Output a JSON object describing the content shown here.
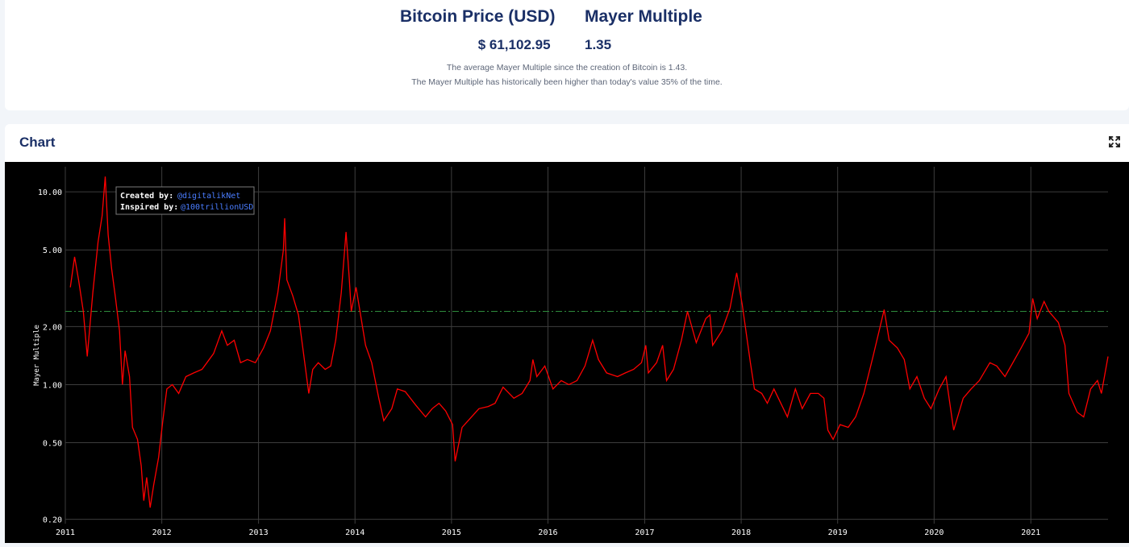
{
  "header": {
    "price_label": "Bitcoin Price (USD)",
    "price_value": "$ 61,102.95",
    "mayer_label": "Mayer Multiple",
    "mayer_value": "1.35",
    "note_1": "The average Mayer Multiple since the creation of Bitcoin is 1.43.",
    "note_2": "The Mayer Multiple has historically been higher than today's value 35% of the time."
  },
  "chart_panel": {
    "title": "Chart",
    "expand_icon": "expand-arrows-icon"
  },
  "credits": {
    "created_label": "Created by:",
    "created_handle": "@digitalikNet",
    "inspired_label": "Inspired by:",
    "inspired_handle": "@100trillionUSD"
  },
  "colors": {
    "series": "#ff0000",
    "threshold": "#2e8b3c",
    "plot_background": "#000000",
    "link": "#4a7dff",
    "heading": "#1a2f66"
  },
  "chart_data": {
    "type": "line",
    "scale_y": "log",
    "ylabel": "Mayer Multiple",
    "xlabel": "",
    "ylim": [
      0.19,
      13.5
    ],
    "xlim": [
      "2011-01-01",
      "2021-10-20"
    ],
    "grid": true,
    "y_ticks": [
      {
        "value": 10,
        "label": "10.00"
      },
      {
        "value": 5,
        "label": "5.00"
      },
      {
        "value": 2,
        "label": "2.00"
      },
      {
        "value": 1,
        "label": "1.00"
      },
      {
        "value": 0.5,
        "label": "0.50"
      },
      {
        "value": 0.2,
        "label": "0.20"
      }
    ],
    "x_ticks": [
      "2011",
      "2012",
      "2013",
      "2014",
      "2015",
      "2016",
      "2017",
      "2018",
      "2019",
      "2020",
      "2021"
    ],
    "threshold_line": {
      "value": 2.4,
      "style": "dash-dot"
    },
    "series": [
      {
        "points": [
          [
            "2011-01-20",
            3.2
          ],
          [
            "2011-02-05",
            4.6
          ],
          [
            "2011-02-20",
            3.5
          ],
          [
            "2011-03-10",
            2.4
          ],
          [
            "2011-03-25",
            1.4
          ],
          [
            "2011-04-15",
            3.0
          ],
          [
            "2011-05-05",
            5.5
          ],
          [
            "2011-05-20",
            7.5
          ],
          [
            "2011-06-01",
            12.0
          ],
          [
            "2011-06-12",
            6.0
          ],
          [
            "2011-06-25",
            4.0
          ],
          [
            "2011-07-10",
            2.8
          ],
          [
            "2011-07-25",
            1.9
          ],
          [
            "2011-08-05",
            1.0
          ],
          [
            "2011-08-15",
            1.5
          ],
          [
            "2011-09-01",
            1.1
          ],
          [
            "2011-09-12",
            0.6
          ],
          [
            "2011-10-01",
            0.52
          ],
          [
            "2011-10-15",
            0.38
          ],
          [
            "2011-10-25",
            0.25
          ],
          [
            "2011-11-05",
            0.33
          ],
          [
            "2011-11-18",
            0.23
          ],
          [
            "2011-12-01",
            0.3
          ],
          [
            "2011-12-20",
            0.42
          ],
          [
            "2012-01-05",
            0.65
          ],
          [
            "2012-01-20",
            0.95
          ],
          [
            "2012-02-10",
            1.0
          ],
          [
            "2012-03-05",
            0.9
          ],
          [
            "2012-04-01",
            1.1
          ],
          [
            "2012-05-01",
            1.15
          ],
          [
            "2012-06-01",
            1.2
          ],
          [
            "2012-07-15",
            1.45
          ],
          [
            "2012-08-15",
            1.9
          ],
          [
            "2012-09-05",
            1.6
          ],
          [
            "2012-10-01",
            1.7
          ],
          [
            "2012-10-25",
            1.3
          ],
          [
            "2012-11-20",
            1.35
          ],
          [
            "2012-12-20",
            1.3
          ],
          [
            "2013-01-20",
            1.55
          ],
          [
            "2013-02-15",
            1.9
          ],
          [
            "2013-03-15",
            3.0
          ],
          [
            "2013-04-05",
            5.0
          ],
          [
            "2013-04-10",
            7.3
          ],
          [
            "2013-04-18",
            3.5
          ],
          [
            "2013-05-10",
            2.9
          ],
          [
            "2013-06-01",
            2.3
          ],
          [
            "2013-06-25",
            1.3
          ],
          [
            "2013-07-10",
            0.9
          ],
          [
            "2013-07-25",
            1.2
          ],
          [
            "2013-08-15",
            1.3
          ],
          [
            "2013-09-10",
            1.2
          ],
          [
            "2013-10-01",
            1.25
          ],
          [
            "2013-10-20",
            1.7
          ],
          [
            "2013-11-10",
            3.0
          ],
          [
            "2013-11-28",
            6.2
          ],
          [
            "2013-12-10",
            3.6
          ],
          [
            "2013-12-18",
            2.4
          ],
          [
            "2014-01-05",
            3.2
          ],
          [
            "2014-01-20",
            2.4
          ],
          [
            "2014-02-10",
            1.6
          ],
          [
            "2014-03-05",
            1.3
          ],
          [
            "2014-04-01",
            0.85
          ],
          [
            "2014-04-20",
            0.65
          ],
          [
            "2014-05-20",
            0.75
          ],
          [
            "2014-06-10",
            0.95
          ],
          [
            "2014-07-10",
            0.92
          ],
          [
            "2014-08-20",
            0.78
          ],
          [
            "2014-09-25",
            0.68
          ],
          [
            "2014-10-20",
            0.75
          ],
          [
            "2014-11-15",
            0.8
          ],
          [
            "2014-12-10",
            0.73
          ],
          [
            "2015-01-05",
            0.62
          ],
          [
            "2015-01-15",
            0.4
          ],
          [
            "2015-02-10",
            0.6
          ],
          [
            "2015-03-05",
            0.65
          ],
          [
            "2015-04-15",
            0.75
          ],
          [
            "2015-05-20",
            0.77
          ],
          [
            "2015-06-15",
            0.8
          ],
          [
            "2015-07-15",
            0.97
          ],
          [
            "2015-08-25",
            0.85
          ],
          [
            "2015-09-25",
            0.9
          ],
          [
            "2015-10-25",
            1.05
          ],
          [
            "2015-11-05",
            1.35
          ],
          [
            "2015-11-20",
            1.1
          ],
          [
            "2015-12-20",
            1.25
          ],
          [
            "2016-01-20",
            0.95
          ],
          [
            "2016-02-20",
            1.05
          ],
          [
            "2016-03-20",
            1.0
          ],
          [
            "2016-04-20",
            1.05
          ],
          [
            "2016-05-20",
            1.25
          ],
          [
            "2016-06-18",
            1.7
          ],
          [
            "2016-07-10",
            1.35
          ],
          [
            "2016-08-10",
            1.15
          ],
          [
            "2016-09-20",
            1.1
          ],
          [
            "2016-10-20",
            1.15
          ],
          [
            "2016-11-20",
            1.2
          ],
          [
            "2016-12-20",
            1.3
          ],
          [
            "2017-01-05",
            1.6
          ],
          [
            "2017-01-15",
            1.15
          ],
          [
            "2017-02-15",
            1.3
          ],
          [
            "2017-03-10",
            1.6
          ],
          [
            "2017-03-25",
            1.05
          ],
          [
            "2017-04-20",
            1.2
          ],
          [
            "2017-05-20",
            1.7
          ],
          [
            "2017-06-12",
            2.4
          ],
          [
            "2017-07-15",
            1.65
          ],
          [
            "2017-08-20",
            2.2
          ],
          [
            "2017-09-05",
            2.3
          ],
          [
            "2017-09-15",
            1.6
          ],
          [
            "2017-10-20",
            1.9
          ],
          [
            "2017-11-20",
            2.5
          ],
          [
            "2017-12-15",
            3.8
          ],
          [
            "2018-01-05",
            2.6
          ],
          [
            "2018-02-05",
            1.3
          ],
          [
            "2018-02-20",
            0.95
          ],
          [
            "2018-03-20",
            0.9
          ],
          [
            "2018-04-10",
            0.8
          ],
          [
            "2018-05-05",
            0.95
          ],
          [
            "2018-06-25",
            0.68
          ],
          [
            "2018-07-25",
            0.95
          ],
          [
            "2018-08-20",
            0.75
          ],
          [
            "2018-09-20",
            0.9
          ],
          [
            "2018-10-20",
            0.9
          ],
          [
            "2018-11-10",
            0.85
          ],
          [
            "2018-11-25",
            0.58
          ],
          [
            "2018-12-15",
            0.52
          ],
          [
            "2019-01-10",
            0.62
          ],
          [
            "2019-02-10",
            0.6
          ],
          [
            "2019-03-10",
            0.68
          ],
          [
            "2019-04-10",
            0.9
          ],
          [
            "2019-05-15",
            1.4
          ],
          [
            "2019-06-26",
            2.45
          ],
          [
            "2019-07-15",
            1.7
          ],
          [
            "2019-08-15",
            1.55
          ],
          [
            "2019-09-10",
            1.35
          ],
          [
            "2019-10-01",
            0.95
          ],
          [
            "2019-10-28",
            1.1
          ],
          [
            "2019-11-25",
            0.85
          ],
          [
            "2019-12-20",
            0.75
          ],
          [
            "2020-01-20",
            0.95
          ],
          [
            "2020-02-15",
            1.1
          ],
          [
            "2020-03-15",
            0.58
          ],
          [
            "2020-04-20",
            0.85
          ],
          [
            "2020-05-20",
            0.95
          ],
          [
            "2020-06-20",
            1.05
          ],
          [
            "2020-07-30",
            1.3
          ],
          [
            "2020-08-25",
            1.25
          ],
          [
            "2020-09-25",
            1.1
          ],
          [
            "2020-10-25",
            1.3
          ],
          [
            "2020-11-25",
            1.55
          ],
          [
            "2020-12-25",
            1.85
          ],
          [
            "2021-01-08",
            2.8
          ],
          [
            "2021-01-25",
            2.2
          ],
          [
            "2021-02-20",
            2.7
          ],
          [
            "2021-03-10",
            2.4
          ],
          [
            "2021-04-15",
            2.1
          ],
          [
            "2021-05-10",
            1.6
          ],
          [
            "2021-05-25",
            0.9
          ],
          [
            "2021-06-25",
            0.72
          ],
          [
            "2021-07-20",
            0.68
          ],
          [
            "2021-08-15",
            0.95
          ],
          [
            "2021-09-10",
            1.05
          ],
          [
            "2021-09-25",
            0.9
          ],
          [
            "2021-10-20",
            1.4
          ]
        ]
      }
    ]
  }
}
